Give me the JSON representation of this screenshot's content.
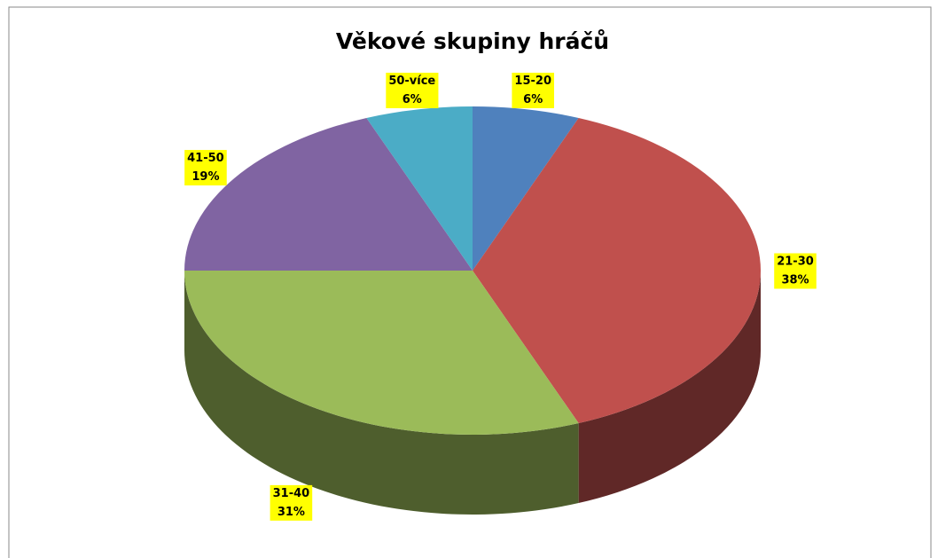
{
  "chart_data": {
    "type": "pie3d",
    "title": "Věkové skupiny hráčů",
    "categories": [
      "15-20",
      "21-30",
      "31-40",
      "41-50",
      "50-více"
    ],
    "values": [
      6,
      38,
      31,
      19,
      6
    ],
    "value_labels": [
      "6%",
      "38%",
      "31%",
      "19%",
      "6%"
    ],
    "colors": [
      "#4f81bd",
      "#c0504d",
      "#9bbb59",
      "#8064a2",
      "#4bacc6"
    ]
  }
}
